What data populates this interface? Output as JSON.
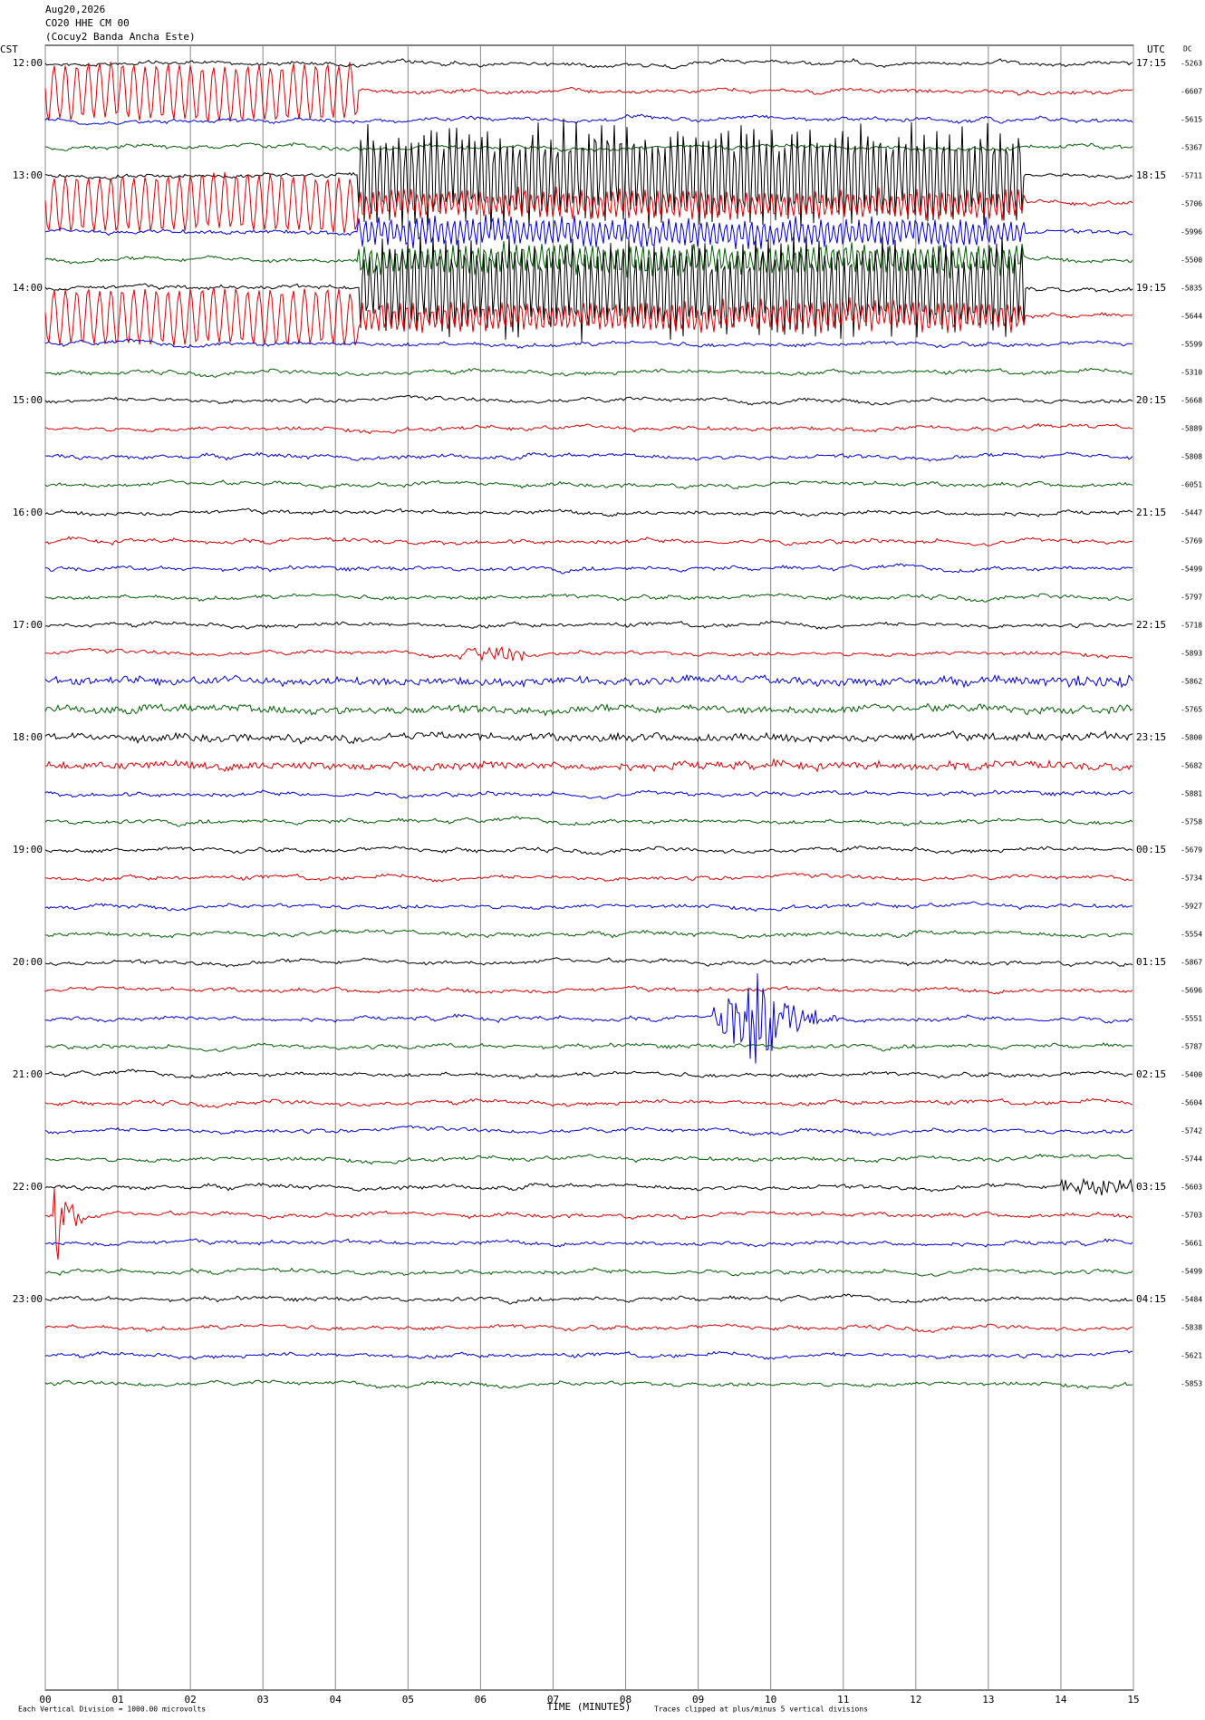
{
  "header": {
    "date": "Aug20,2026",
    "station": "CO20 HHE CM 00",
    "site": "(Cocuy2 Banda Ancha Este)",
    "left_zone": "CST",
    "right_zone": "UTC",
    "dc_heading": "DC"
  },
  "left_labels": [
    "12:00",
    "13:00",
    "14:00",
    "15:00",
    "16:00",
    "17:00",
    "18:00",
    "19:00",
    "20:00",
    "21:00",
    "22:00",
    "23:00"
  ],
  "right_labels": [
    "17:15",
    "18:15",
    "19:15",
    "20:15",
    "21:15",
    "22:15",
    "23:15",
    "00:15",
    "01:15",
    "02:15",
    "03:15",
    "04:15"
  ],
  "dc_values": [
    "-5263",
    "-6607",
    "-5615",
    "-5367",
    "-5711",
    "-5706",
    "-5996",
    "-5500",
    "-5835",
    "-5644",
    "-5599",
    "-5310",
    "-5668",
    "-5889",
    "-5808",
    "-6051",
    "-5447",
    "-5769",
    "-5499",
    "-5797",
    "-5718",
    "-5893",
    "-5862",
    "-5765",
    "-5800",
    "-5682",
    "-5881",
    "-5758",
    "-5679",
    "-5734",
    "-5927",
    "-5554",
    "-5867",
    "-5696",
    "-5551",
    "-5787",
    "-5400",
    "-5604",
    "-5742",
    "-5744",
    "-5603",
    "-5703",
    "-5661",
    "-5499",
    "-5484",
    "-5838",
    "-5621",
    "-5853"
  ],
  "x_ticks": [
    "00",
    "01",
    "02",
    "03",
    "04",
    "05",
    "06",
    "07",
    "08",
    "09",
    "10",
    "11",
    "12",
    "13",
    "14",
    "15"
  ],
  "footer": {
    "scale_note": "Each Vertical Division = 1000.00 microvolts",
    "x_label": "TIME (MINUTES)",
    "clip_note": "Traces clipped at plus/minus 5 vertical divisions"
  }
}
